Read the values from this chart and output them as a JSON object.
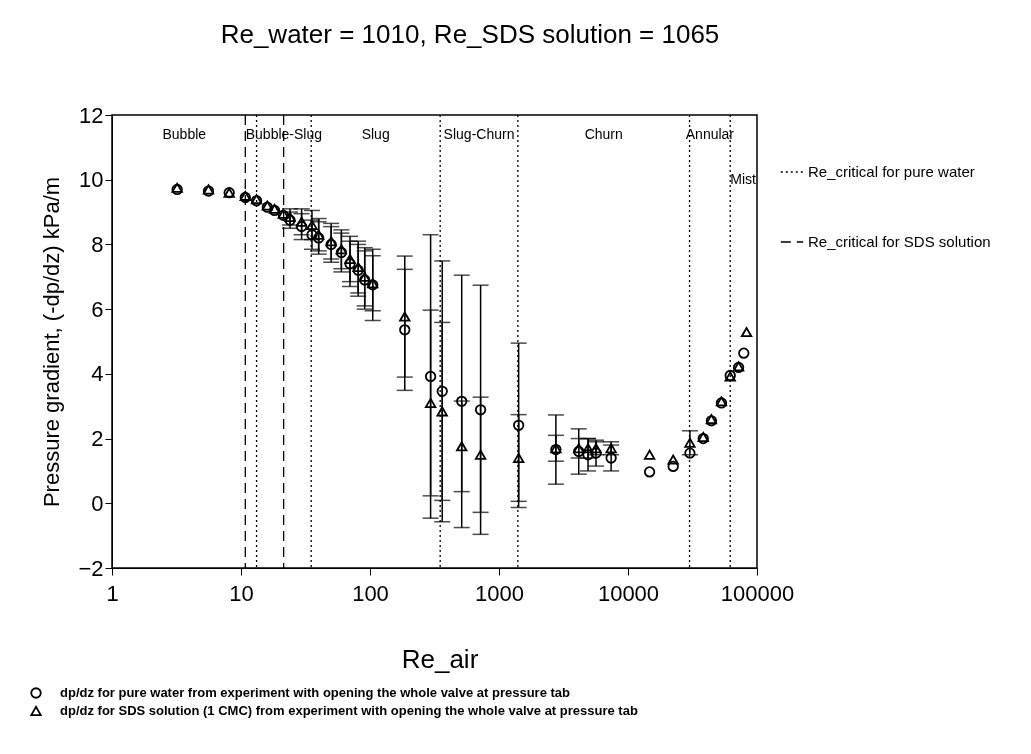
{
  "chart_data": {
    "type": "scatter",
    "title": "Re_water = 1010, Re_SDS solution = 1065",
    "xlabel": "Re_air",
    "ylabel": "Pressure gradient, (-dp/dz) kPa/m",
    "log": "x",
    "xlim": [
      1,
      100000
    ],
    "xticks": [
      1,
      10,
      100,
      1000,
      10000,
      100000
    ],
    "ylim": [
      -2,
      12
    ],
    "yticks": [
      -2,
      0,
      2,
      4,
      6,
      8,
      10,
      12
    ],
    "legend": "bottom",
    "series": [
      {
        "name": "dp/dz for pure water from experiment with opening the whole valve at pressure tab",
        "color": "#000000",
        "marker": "circle",
        "x": [
          3.2,
          5.6,
          8.1,
          10.8,
          13.2,
          16,
          18.2,
          21.3,
          24,
          29.5,
          35.5,
          40,
          50,
          60,
          70,
          81,
          91,
          105,
          186,
          295,
          363,
          514,
          720,
          1420,
          2760,
          4150,
          4900,
          5650,
          7400,
          14700,
          22400,
          30200,
          38300,
          44300,
          53000,
          62000,
          72000,
          79000
        ],
        "values": [
          9.7,
          9.65,
          9.6,
          9.45,
          9.35,
          9.15,
          9.05,
          8.9,
          8.75,
          8.55,
          8.3,
          8.2,
          8.0,
          7.75,
          7.4,
          7.2,
          6.9,
          6.75,
          5.36,
          3.92,
          3.46,
          3.15,
          2.89,
          2.41,
          1.66,
          1.6,
          1.5,
          1.55,
          1.4,
          0.97,
          1.14,
          1.55,
          2.0,
          2.55,
          3.1,
          3.95,
          4.2,
          4.64
        ],
        "errors": [
          null,
          null,
          null,
          null,
          null,
          null,
          null,
          null,
          0.25,
          0.4,
          0.45,
          0.5,
          0.55,
          0.6,
          0.7,
          0.8,
          0.9,
          1.1,
          1.87,
          4.38,
          4.03,
          3.9,
          3.85,
          2.54,
          1.07,
          0.7,
          0.5,
          0.4,
          0.4,
          null,
          null,
          null,
          null,
          null,
          null,
          null,
          null,
          null
        ]
      },
      {
        "name": "dp/dz for SDS solution (1 CMC) from experiment with opening the whole valve at pressure tab",
        "color": "#000000",
        "marker": "triangle",
        "x": [
          3.2,
          5.6,
          8.1,
          10.8,
          13.2,
          16,
          18.2,
          21.3,
          24,
          29.5,
          35.5,
          40,
          50,
          60,
          70,
          81,
          91,
          105,
          186,
          295,
          363,
          514,
          720,
          1420,
          2760,
          4150,
          4900,
          5650,
          7400,
          14700,
          22400,
          30200,
          38300,
          44300,
          53000,
          62000,
          72000,
          83000
        ],
        "values": [
          9.75,
          9.7,
          9.6,
          9.5,
          9.4,
          9.2,
          9.1,
          8.95,
          8.85,
          8.7,
          8.6,
          8.3,
          8.1,
          7.85,
          7.55,
          7.3,
          7.0,
          6.8,
          5.77,
          3.1,
          2.84,
          1.76,
          1.5,
          1.4,
          1.7,
          1.7,
          1.7,
          1.7,
          1.7,
          1.5,
          1.35,
          1.87,
          2.05,
          2.6,
          3.15,
          3.92,
          4.23,
          5.29
        ],
        "errors": [
          null,
          null,
          null,
          null,
          null,
          null,
          null,
          null,
          0.25,
          0.4,
          0.45,
          0.5,
          0.55,
          0.6,
          0.7,
          0.8,
          0.9,
          0.85,
          1.87,
          2.87,
          2.75,
          1.4,
          1.78,
          1.34,
          0.4,
          0.3,
          0.3,
          0.2,
          0.2,
          null,
          null,
          0.37,
          null,
          null,
          null,
          null,
          null,
          null
        ]
      }
    ],
    "ref_lines": [
      {
        "axis": "x",
        "value": 13.2,
        "line_style": "dotted",
        "color": "#000000"
      },
      {
        "axis": "x",
        "value": 10.8,
        "line_style": "dashed",
        "color": "#000000"
      },
      {
        "axis": "x",
        "value": 21.4,
        "line_style": "dashed",
        "color": "#000000"
      },
      {
        "axis": "x",
        "value": 35,
        "line_style": "dotted",
        "color": "#000000"
      },
      {
        "axis": "x",
        "value": 350,
        "line_style": "dotted",
        "color": "#000000"
      },
      {
        "axis": "x",
        "value": 1400,
        "line_style": "dotted",
        "color": "#000000"
      },
      {
        "axis": "x",
        "value": 30000,
        "line_style": "dotted",
        "color": "#000000"
      },
      {
        "axis": "x",
        "value": 62000,
        "line_style": "dotted",
        "color": "#000000"
      }
    ],
    "annotations": [
      "Bubble",
      "Bubble-Slug",
      "Slug",
      "Slug-Churn",
      "Churn",
      "Annular",
      "Mist",
      "Re_critical for pure water",
      "Re_critical for SDS solution"
    ]
  }
}
